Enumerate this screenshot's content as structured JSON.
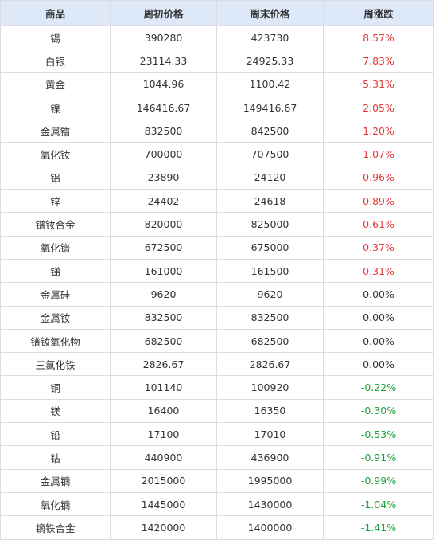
{
  "headers": {
    "product": "商品",
    "open": "周初价格",
    "close": "周末价格",
    "change": "周涨跌"
  },
  "colors": {
    "up": "#e4393c",
    "flat": "#333333",
    "down": "#1aa33a",
    "header_bg": "#dde9f8"
  },
  "rows": [
    {
      "name": "锡",
      "open": "390280",
      "close": "423730",
      "change": "8.57%",
      "trend": "up"
    },
    {
      "name": "白银",
      "open": "23114.33",
      "close": "24925.33",
      "change": "7.83%",
      "trend": "up"
    },
    {
      "name": "黄金",
      "open": "1044.96",
      "close": "1100.42",
      "change": "5.31%",
      "trend": "up"
    },
    {
      "name": "镍",
      "open": "146416.67",
      "close": "149416.67",
      "change": "2.05%",
      "trend": "up"
    },
    {
      "name": "金属镨",
      "open": "832500",
      "close": "842500",
      "change": "1.20%",
      "trend": "up"
    },
    {
      "name": "氧化钕",
      "open": "700000",
      "close": "707500",
      "change": "1.07%",
      "trend": "up"
    },
    {
      "name": "铝",
      "open": "23890",
      "close": "24120",
      "change": "0.96%",
      "trend": "up"
    },
    {
      "name": "锌",
      "open": "24402",
      "close": "24618",
      "change": "0.89%",
      "trend": "up"
    },
    {
      "name": "镨钕合金",
      "open": "820000",
      "close": "825000",
      "change": "0.61%",
      "trend": "up"
    },
    {
      "name": "氧化镨",
      "open": "672500",
      "close": "675000",
      "change": "0.37%",
      "trend": "up"
    },
    {
      "name": "锑",
      "open": "161000",
      "close": "161500",
      "change": "0.31%",
      "trend": "up"
    },
    {
      "name": "金属硅",
      "open": "9620",
      "close": "9620",
      "change": "0.00%",
      "trend": "flat"
    },
    {
      "name": "金属钕",
      "open": "832500",
      "close": "832500",
      "change": "0.00%",
      "trend": "flat"
    },
    {
      "name": "镨钕氧化物",
      "open": "682500",
      "close": "682500",
      "change": "0.00%",
      "trend": "flat"
    },
    {
      "name": "三氯化铁",
      "open": "2826.67",
      "close": "2826.67",
      "change": "0.00%",
      "trend": "flat"
    },
    {
      "name": "铜",
      "open": "101140",
      "close": "100920",
      "change": "-0.22%",
      "trend": "down"
    },
    {
      "name": "镁",
      "open": "16400",
      "close": "16350",
      "change": "-0.30%",
      "trend": "down"
    },
    {
      "name": "铅",
      "open": "17100",
      "close": "17010",
      "change": "-0.53%",
      "trend": "down"
    },
    {
      "name": "钴",
      "open": "440900",
      "close": "436900",
      "change": "-0.91%",
      "trend": "down"
    },
    {
      "name": "金属镝",
      "open": "2015000",
      "close": "1995000",
      "change": "-0.99%",
      "trend": "down"
    },
    {
      "name": "氧化镝",
      "open": "1445000",
      "close": "1430000",
      "change": "-1.04%",
      "trend": "down"
    },
    {
      "name": "镝铁合金",
      "open": "1420000",
      "close": "1400000",
      "change": "-1.41%",
      "trend": "down"
    }
  ]
}
